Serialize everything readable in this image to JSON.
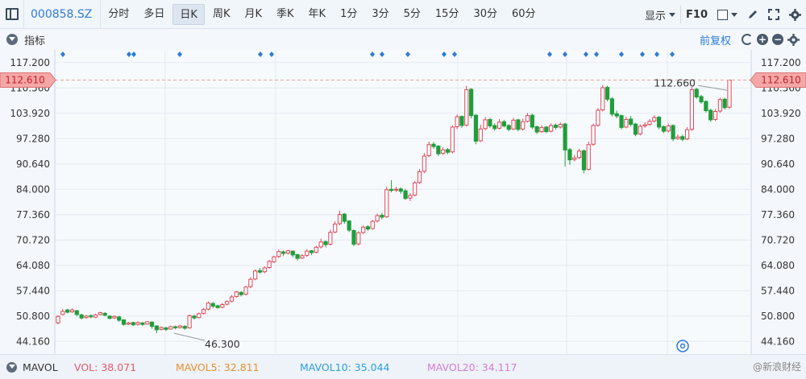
{
  "toolbar": {
    "code": "000858.SZ",
    "periods": [
      "分时",
      "多日",
      "日K",
      "周K",
      "月K",
      "季K",
      "年K",
      "1分",
      "3分",
      "5分",
      "15分",
      "30分",
      "60分"
    ],
    "active_period": "日K",
    "display_label": "显示",
    "f10_label": "F10"
  },
  "indicator_bar": {
    "label": "指标",
    "fq_label": "前复权"
  },
  "price_axis": {
    "ticks": [
      "117.200",
      "110.560",
      "103.920",
      "97.280",
      "90.640",
      "84.000",
      "77.360",
      "70.720",
      "64.080",
      "57.440",
      "50.800",
      "44.160"
    ],
    "current_price": "112.610",
    "high_label": "112.660",
    "low_label": "46.300"
  },
  "chart_data": {
    "type": "candlestick",
    "ylim": [
      40.84,
      120.52
    ],
    "y_ticks": [
      117.2,
      110.56,
      103.92,
      97.28,
      90.64,
      84.0,
      77.36,
      70.72,
      64.08,
      57.44,
      50.8,
      44.16
    ],
    "current_price": 112.61,
    "annotations": [
      {
        "text": "112.660",
        "value": 112.66
      },
      {
        "text": "46.300",
        "value": 46.3
      }
    ],
    "candles": [
      [
        49.0,
        50.7,
        48.6,
        51.0
      ],
      [
        51.2,
        52.0,
        51.0,
        52.6
      ],
      [
        52.4,
        51.8,
        51.5,
        52.7
      ],
      [
        51.9,
        52.4,
        51.6,
        52.8
      ],
      [
        52.2,
        51.2,
        50.7,
        52.4
      ],
      [
        51.1,
        50.3,
        49.9,
        51.4
      ],
      [
        50.4,
        50.8,
        50.1,
        51.1
      ],
      [
        50.9,
        50.6,
        50.2,
        51.2
      ],
      [
        50.5,
        51.1,
        50.3,
        51.4
      ],
      [
        51.2,
        51.7,
        51.0,
        51.9
      ],
      [
        51.5,
        51.0,
        50.7,
        51.8
      ],
      [
        50.8,
        50.2,
        49.9,
        51.0
      ],
      [
        50.3,
        50.7,
        50.0,
        51.0
      ],
      [
        50.6,
        49.7,
        49.3,
        50.8
      ],
      [
        49.8,
        48.6,
        48.3,
        49.9
      ],
      [
        48.7,
        49.0,
        48.4,
        49.3
      ],
      [
        49.1,
        48.5,
        48.2,
        49.3
      ],
      [
        48.6,
        49.1,
        48.3,
        49.4
      ],
      [
        49.0,
        48.6,
        48.2,
        49.2
      ],
      [
        48.7,
        49.3,
        48.5,
        49.5
      ],
      [
        49.2,
        48.1,
        47.5,
        49.4
      ],
      [
        48.2,
        47.2,
        46.3,
        48.4
      ],
      [
        47.3,
        47.8,
        47.0,
        48.1
      ],
      [
        47.7,
        47.3,
        46.9,
        48.0
      ],
      [
        47.4,
        48.0,
        47.2,
        48.3
      ],
      [
        48.0,
        47.7,
        47.3,
        48.3
      ],
      [
        47.8,
        48.2,
        47.5,
        48.5
      ],
      [
        48.1,
        47.6,
        47.2,
        48.4
      ],
      [
        47.7,
        50.9,
        47.5,
        51.2
      ],
      [
        50.8,
        50.3,
        49.9,
        51.1
      ],
      [
        50.4,
        51.4,
        50.2,
        51.7
      ],
      [
        51.5,
        52.5,
        51.2,
        52.9
      ],
      [
        52.6,
        54.2,
        52.3,
        54.6
      ],
      [
        54.1,
        53.4,
        52.9,
        54.4
      ],
      [
        53.5,
        53.0,
        52.7,
        53.8
      ],
      [
        53.1,
        53.8,
        52.8,
        54.2
      ],
      [
        53.9,
        54.6,
        53.6,
        54.9
      ],
      [
        54.7,
        55.8,
        54.4,
        56.3
      ],
      [
        55.9,
        57.1,
        55.6,
        57.4
      ],
      [
        57.0,
        56.4,
        55.9,
        57.3
      ],
      [
        56.5,
        58.4,
        56.2,
        58.7
      ],
      [
        58.5,
        60.4,
        58.1,
        61.0
      ],
      [
        60.5,
        62.6,
        60.2,
        63.0
      ],
      [
        62.7,
        62.3,
        61.9,
        63.4
      ],
      [
        62.4,
        63.4,
        62.0,
        63.8
      ],
      [
        63.5,
        65.1,
        63.2,
        65.5
      ],
      [
        65.0,
        66.3,
        64.7,
        66.6
      ],
      [
        66.4,
        67.7,
        66.0,
        68.2
      ],
      [
        67.6,
        67.2,
        66.5,
        68.0
      ],
      [
        67.3,
        67.9,
        66.9,
        68.2
      ],
      [
        67.8,
        66.8,
        66.2,
        68.0
      ],
      [
        66.9,
        65.9,
        65.3,
        67.1
      ],
      [
        66.0,
        66.6,
        65.7,
        67.0
      ],
      [
        66.7,
        67.8,
        66.3,
        68.3
      ],
      [
        67.9,
        67.4,
        66.8,
        68.1
      ],
      [
        67.5,
        68.8,
        67.2,
        69.2
      ],
      [
        68.9,
        70.2,
        68.5,
        71.1
      ],
      [
        70.3,
        69.5,
        68.8,
        70.6
      ],
      [
        69.6,
        72.7,
        69.3,
        73.4
      ],
      [
        72.8,
        74.9,
        72.5,
        75.6
      ],
      [
        75.0,
        77.4,
        74.6,
        78.4
      ],
      [
        77.5,
        75.6,
        75.0,
        77.8
      ],
      [
        75.7,
        73.3,
        72.8,
        75.9
      ],
      [
        73.2,
        69.6,
        69.1,
        73.5
      ],
      [
        69.7,
        72.6,
        69.3,
        73.0
      ],
      [
        72.7,
        74.1,
        72.3,
        74.5
      ],
      [
        74.2,
        73.6,
        73.1,
        74.6
      ],
      [
        73.7,
        75.6,
        73.4,
        76.0
      ],
      [
        75.7,
        77.1,
        75.3,
        77.6
      ],
      [
        77.2,
        76.7,
        76.1,
        77.8
      ],
      [
        76.8,
        83.9,
        76.5,
        84.7
      ],
      [
        84.0,
        83.7,
        83.2,
        86.4
      ],
      [
        83.8,
        84.0,
        83.3,
        84.7
      ],
      [
        84.1,
        83.5,
        82.8,
        84.5
      ],
      [
        83.6,
        81.6,
        81.2,
        84.1
      ],
      [
        81.7,
        82.4,
        80.9,
        83.0
      ],
      [
        82.5,
        85.7,
        82.1,
        86.2
      ],
      [
        85.8,
        88.6,
        85.4,
        89.3
      ],
      [
        88.7,
        92.7,
        88.2,
        93.5
      ],
      [
        92.8,
        95.7,
        92.4,
        96.5
      ],
      [
        95.8,
        95.2,
        94.6,
        96.4
      ],
      [
        95.3,
        93.3,
        92.7,
        95.6
      ],
      [
        93.4,
        94.3,
        93.0,
        95.0
      ],
      [
        94.4,
        93.7,
        93.2,
        94.8
      ],
      [
        93.8,
        100.3,
        93.4,
        100.8
      ],
      [
        100.4,
        103.0,
        99.8,
        103.6
      ],
      [
        103.1,
        100.7,
        100.1,
        103.3
      ],
      [
        100.8,
        110.1,
        100.4,
        111.1
      ],
      [
        110.2,
        103.3,
        102.6,
        110.5
      ],
      [
        103.4,
        96.6,
        95.8,
        103.7
      ],
      [
        96.7,
        99.8,
        96.4,
        100.9
      ],
      [
        99.9,
        102.2,
        99.5,
        102.9
      ],
      [
        102.3,
        100.6,
        100.1,
        102.7
      ],
      [
        100.7,
        99.9,
        99.4,
        101.3
      ],
      [
        100.0,
        101.6,
        99.7,
        102.4
      ],
      [
        101.7,
        100.6,
        100.2,
        102.2
      ],
      [
        100.7,
        99.7,
        99.2,
        101.1
      ],
      [
        99.8,
        102.1,
        99.5,
        102.7
      ],
      [
        102.2,
        99.7,
        99.2,
        102.5
      ],
      [
        99.8,
        101.7,
        99.4,
        102.5
      ],
      [
        101.8,
        103.3,
        101.5,
        104.0
      ],
      [
        103.4,
        100.3,
        99.8,
        103.8
      ],
      [
        100.4,
        99.0,
        98.5,
        100.7
      ],
      [
        99.1,
        100.2,
        98.8,
        100.8
      ],
      [
        100.3,
        99.1,
        98.7,
        100.6
      ],
      [
        99.2,
        100.7,
        98.9,
        101.3
      ],
      [
        100.8,
        100.2,
        99.7,
        101.2
      ],
      [
        100.3,
        101.0,
        99.9,
        101.5
      ],
      [
        101.1,
        94.3,
        90.0,
        101.4
      ],
      [
        94.4,
        91.7,
        90.4,
        94.8
      ],
      [
        91.8,
        92.2,
        91.3,
        93.0
      ],
      [
        92.3,
        94.0,
        91.9,
        94.6
      ],
      [
        94.1,
        89.1,
        88.2,
        94.4
      ],
      [
        89.2,
        95.7,
        88.9,
        96.5
      ],
      [
        95.8,
        100.7,
        95.4,
        101.2
      ],
      [
        100.8,
        104.7,
        100.4,
        105.3
      ],
      [
        104.8,
        110.6,
        104.4,
        111.3
      ],
      [
        110.7,
        107.6,
        107.0,
        111.1
      ],
      [
        107.7,
        103.7,
        103.1,
        108.2
      ],
      [
        103.8,
        103.2,
        102.6,
        104.6
      ],
      [
        103.3,
        100.2,
        99.7,
        103.6
      ],
      [
        100.3,
        102.3,
        100.0,
        103.0
      ],
      [
        102.4,
        101.0,
        100.5,
        103.2
      ],
      [
        101.1,
        98.4,
        97.9,
        101.4
      ],
      [
        98.5,
        100.5,
        98.1,
        101.0
      ],
      [
        100.6,
        100.9,
        100.1,
        101.6
      ],
      [
        101.0,
        101.8,
        100.6,
        102.4
      ],
      [
        101.9,
        102.8,
        101.5,
        103.4
      ],
      [
        102.9,
        100.3,
        99.7,
        103.2
      ],
      [
        100.4,
        99.2,
        98.7,
        100.7
      ],
      [
        99.3,
        100.6,
        98.9,
        101.2
      ],
      [
        100.7,
        97.2,
        96.6,
        101.0
      ],
      [
        97.3,
        97.7,
        96.9,
        98.4
      ],
      [
        97.8,
        97.1,
        96.6,
        98.3
      ],
      [
        97.2,
        99.6,
        96.9,
        100.3
      ],
      [
        99.7,
        110.1,
        99.3,
        110.8
      ],
      [
        110.2,
        108.2,
        107.7,
        110.6
      ],
      [
        108.3,
        106.9,
        106.4,
        108.7
      ],
      [
        107.0,
        104.6,
        104.1,
        107.3
      ],
      [
        104.7,
        102.2,
        101.7,
        105.1
      ],
      [
        102.3,
        104.4,
        101.9,
        105.0
      ],
      [
        104.5,
        107.5,
        104.0,
        108.0
      ],
      [
        107.6,
        105.4,
        104.9,
        108.0
      ],
      [
        105.5,
        112.61,
        105.1,
        112.66
      ]
    ]
  },
  "markers_count": 21,
  "volume_bar": {
    "label": "MAVOL",
    "vol": "VOL: 38.071",
    "mavol5": "MAVOL5: 32.811",
    "mavol10": "MAVOL10: 35.044",
    "mavol20": "MAVOL20: 34.117",
    "watermark": "@新浪财经",
    "vol_color": "#e05a6a",
    "mavol5_color": "#e8902a",
    "mavol10_color": "#2aa0d8",
    "mavol20_color": "#d67ad8"
  },
  "colors": {
    "up": "#e0475a",
    "down": "#1f9e3a",
    "accent": "#2e7bd8",
    "price_tag": "#f4a7a7"
  }
}
